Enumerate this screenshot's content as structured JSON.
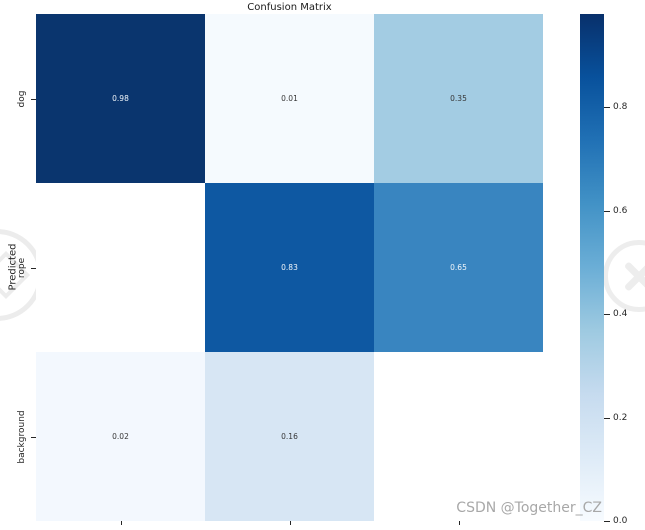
{
  "figure": {
    "background": "#ffffff",
    "watermark_text": "CSDN @Together_CZ",
    "watermark_color": "#a8a8a8"
  },
  "chart_data": {
    "type": "heatmap",
    "title": "Confusion Matrix",
    "xlabel": "",
    "ylabel": "Predicted",
    "y_categories": [
      "dog",
      "rope",
      "background"
    ],
    "matrix": [
      [
        0.98,
        0.01,
        0.35
      ],
      [
        null,
        0.83,
        0.65
      ],
      [
        0.02,
        0.16,
        null
      ]
    ],
    "cell_colors": [
      [
        "#0a356e",
        "#f5fafe",
        "#a3cce3"
      ],
      [
        "#ffffff",
        "#0e58a2",
        "#3985c0"
      ],
      [
        "#f3f8fe",
        "#d7e6f4",
        "#ffffff"
      ]
    ],
    "annot_color_light": "#f2f7fb",
    "annot_color_dark": "#363636",
    "colormap": "Blues",
    "grid": false,
    "legend_position": "right-colorbar",
    "colorbar": {
      "vmin": 0.0,
      "vmax": 0.98,
      "ticks": [
        {
          "label": "0.8",
          "value": 0.8
        },
        {
          "label": "0.6",
          "value": 0.6
        },
        {
          "label": "0.4",
          "value": 0.4
        },
        {
          "label": "0.2",
          "value": 0.2
        },
        {
          "label": "0.0",
          "value": 0.0
        }
      ],
      "gradient_stops": [
        {
          "pos": 0,
          "color": "#f7fbff"
        },
        {
          "pos": 12.5,
          "color": "#deebf7"
        },
        {
          "pos": 25,
          "color": "#c6dbef"
        },
        {
          "pos": 37.5,
          "color": "#9ecae1"
        },
        {
          "pos": 50,
          "color": "#6baed6"
        },
        {
          "pos": 62.5,
          "color": "#4292c6"
        },
        {
          "pos": 75,
          "color": "#2171b5"
        },
        {
          "pos": 87.5,
          "color": "#08519c"
        },
        {
          "pos": 100,
          "color": "#08306b"
        }
      ]
    }
  }
}
